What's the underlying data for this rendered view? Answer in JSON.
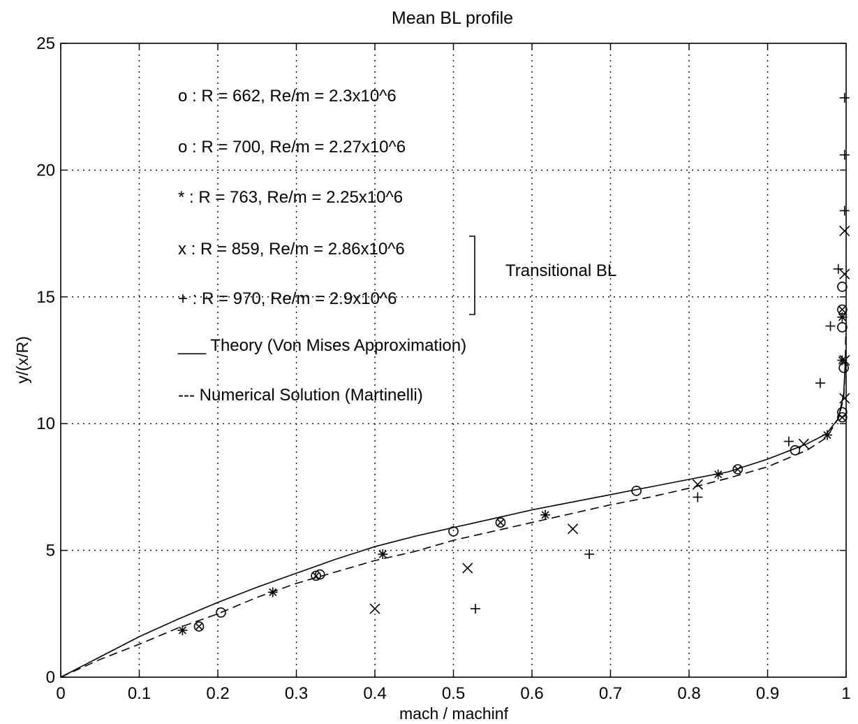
{
  "chart_data": {
    "type": "scatter",
    "title": "Mean BL profile",
    "xlabel": "mach / machinf",
    "ylabel": "y/(x/R)",
    "xlim": [
      0,
      1
    ],
    "ylim": [
      0,
      25
    ],
    "x_ticks": [
      0,
      0.1,
      0.2,
      0.3,
      0.4,
      0.5,
      0.6,
      0.7,
      0.8,
      0.9,
      1
    ],
    "x_tick_labels": [
      "0",
      "0.1",
      "0.2",
      "0.3",
      "0.4",
      "0.5",
      "0.6",
      "0.7",
      "0.8",
      "0.9",
      "1"
    ],
    "y_ticks": [
      0,
      5,
      10,
      15,
      20,
      25
    ],
    "y_tick_labels": [
      "0",
      "5",
      "10",
      "15",
      "20",
      "25"
    ],
    "grid": true,
    "legend": [
      {
        "label": "o : R = 662, Re/m = 2.3x10^6"
      },
      {
        "label": "o : R = 700, Re/m = 2.27x10^6"
      },
      {
        "label": "* : R = 763, Re/m = 2.25x10^6"
      },
      {
        "label": "x : R = 859, Re/m = 2.86x10^6"
      },
      {
        "label": "+ : R = 970, Re/m = 2.9x10^6"
      },
      {
        "label": "___ Theory (Von Mises Approximation)"
      },
      {
        "label": "--- Numerical Solution (Martinelli)"
      }
    ],
    "annotation": "Transitional BL",
    "series": [
      {
        "marker": "circle",
        "points": [
          [
            0.204,
            2.55
          ],
          [
            0.33,
            4.05
          ],
          [
            0.5,
            5.75
          ],
          [
            0.733,
            7.35
          ],
          [
            0.935,
            8.95
          ],
          [
            0.995,
            10.45
          ],
          [
            0.997,
            12.2
          ],
          [
            0.995,
            13.8
          ],
          [
            0.995,
            15.4
          ]
        ]
      },
      {
        "marker": "circle-x",
        "points": [
          [
            0.176,
            2.0
          ],
          [
            0.325,
            4.0
          ],
          [
            0.56,
            6.1
          ],
          [
            0.862,
            8.2
          ],
          [
            0.995,
            10.25
          ],
          [
            0.995,
            14.5
          ]
        ]
      },
      {
        "marker": "star",
        "points": [
          [
            0.155,
            1.85
          ],
          [
            0.27,
            3.35
          ],
          [
            0.41,
            4.85
          ],
          [
            0.617,
            6.4
          ],
          [
            0.837,
            8.0
          ],
          [
            0.976,
            9.55
          ],
          [
            0.995,
            12.5
          ],
          [
            0.995,
            14.2
          ]
        ]
      },
      {
        "marker": "x",
        "points": [
          [
            0.4,
            2.7
          ],
          [
            0.518,
            4.3
          ],
          [
            0.652,
            5.85
          ],
          [
            0.811,
            7.6
          ],
          [
            0.946,
            9.2
          ],
          [
            0.998,
            11.0
          ],
          [
            0.998,
            12.5
          ],
          [
            0.998,
            15.9
          ],
          [
            0.998,
            17.6
          ]
        ]
      },
      {
        "marker": "plus",
        "points": [
          [
            0.528,
            2.7
          ],
          [
            0.673,
            4.85
          ],
          [
            0.811,
            7.1
          ],
          [
            0.927,
            9.3
          ],
          [
            0.967,
            11.6
          ],
          [
            0.98,
            13.85
          ],
          [
            0.99,
            16.1
          ],
          [
            0.998,
            18.4
          ],
          [
            0.998,
            20.6
          ],
          [
            0.998,
            22.85
          ]
        ]
      },
      {
        "line": "solid",
        "points": [
          [
            0,
            0
          ],
          [
            0.05,
            0.8
          ],
          [
            0.1,
            1.6
          ],
          [
            0.15,
            2.3
          ],
          [
            0.2,
            2.95
          ],
          [
            0.25,
            3.55
          ],
          [
            0.3,
            4.1
          ],
          [
            0.35,
            4.65
          ],
          [
            0.4,
            5.15
          ],
          [
            0.45,
            5.55
          ],
          [
            0.5,
            5.9
          ],
          [
            0.55,
            6.25
          ],
          [
            0.6,
            6.6
          ],
          [
            0.65,
            6.9
          ],
          [
            0.7,
            7.2
          ],
          [
            0.75,
            7.5
          ],
          [
            0.8,
            7.8
          ],
          [
            0.85,
            8.1
          ],
          [
            0.9,
            8.6
          ],
          [
            0.95,
            9.2
          ],
          [
            0.975,
            9.6
          ],
          [
            0.99,
            10.2
          ],
          [
            0.997,
            11.2
          ],
          [
            0.999,
            12.5
          ]
        ]
      },
      {
        "line": "dashed",
        "points": [
          [
            0,
            0
          ],
          [
            0.05,
            0.7
          ],
          [
            0.1,
            1.3
          ],
          [
            0.15,
            1.95
          ],
          [
            0.2,
            2.5
          ],
          [
            0.25,
            3.15
          ],
          [
            0.3,
            3.7
          ],
          [
            0.35,
            4.15
          ],
          [
            0.4,
            4.6
          ],
          [
            0.45,
            4.95
          ],
          [
            0.5,
            5.4
          ],
          [
            0.55,
            5.75
          ],
          [
            0.6,
            6.1
          ],
          [
            0.65,
            6.45
          ],
          [
            0.7,
            6.8
          ],
          [
            0.75,
            7.1
          ],
          [
            0.8,
            7.45
          ],
          [
            0.85,
            7.85
          ],
          [
            0.9,
            8.3
          ],
          [
            0.95,
            8.95
          ],
          [
            0.975,
            9.45
          ],
          [
            0.99,
            10.2
          ],
          [
            0.997,
            11.0
          ],
          [
            0.999,
            12.5
          ],
          [
            1.0,
            14.5
          ]
        ]
      }
    ]
  }
}
